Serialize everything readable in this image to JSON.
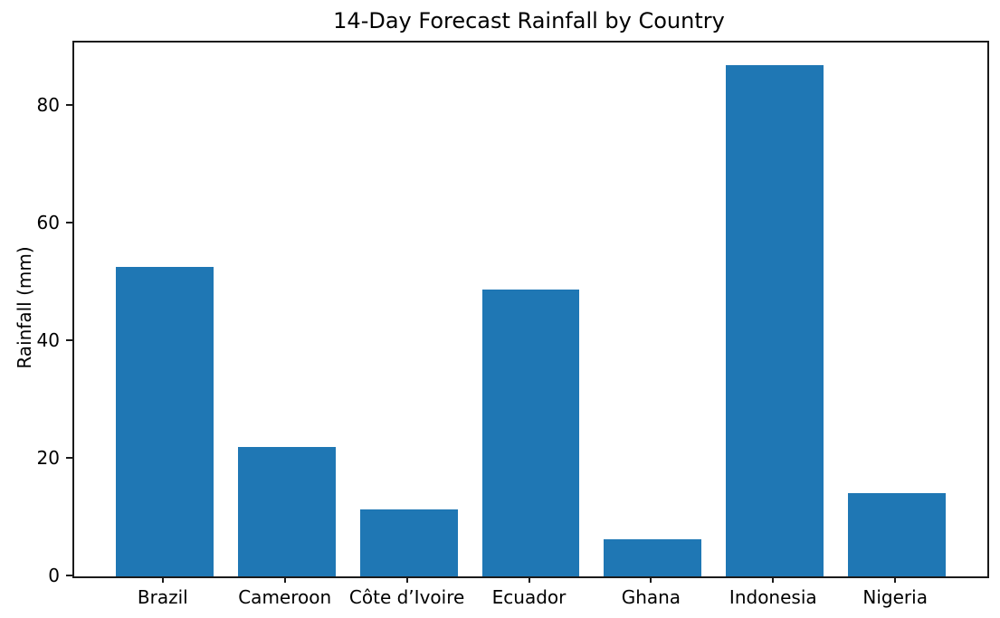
{
  "figure": {
    "background": "#ffffff",
    "text_color": "#000000",
    "spine_color": "#1a1a1a"
  },
  "chart_data": {
    "type": "bar",
    "title": "14-Day Forecast Rainfall by Country",
    "xlabel": "",
    "ylabel": "Rainfall (mm)",
    "categories": [
      "Brazil",
      "Cameroon",
      "Côte d’Ivoire",
      "Ecuador",
      "Ghana",
      "Indonesia",
      "Nigeria"
    ],
    "values": [
      52.7,
      22.0,
      11.4,
      48.8,
      6.3,
      86.9,
      14.2
    ],
    "yticks": [
      0,
      20,
      40,
      60,
      80
    ],
    "ylim": [
      0,
      90.8
    ],
    "bar_color": "#1f77b4",
    "bar_width_fraction": 0.8,
    "x_edge_margin": 0.74,
    "grid": false,
    "legend": null
  }
}
